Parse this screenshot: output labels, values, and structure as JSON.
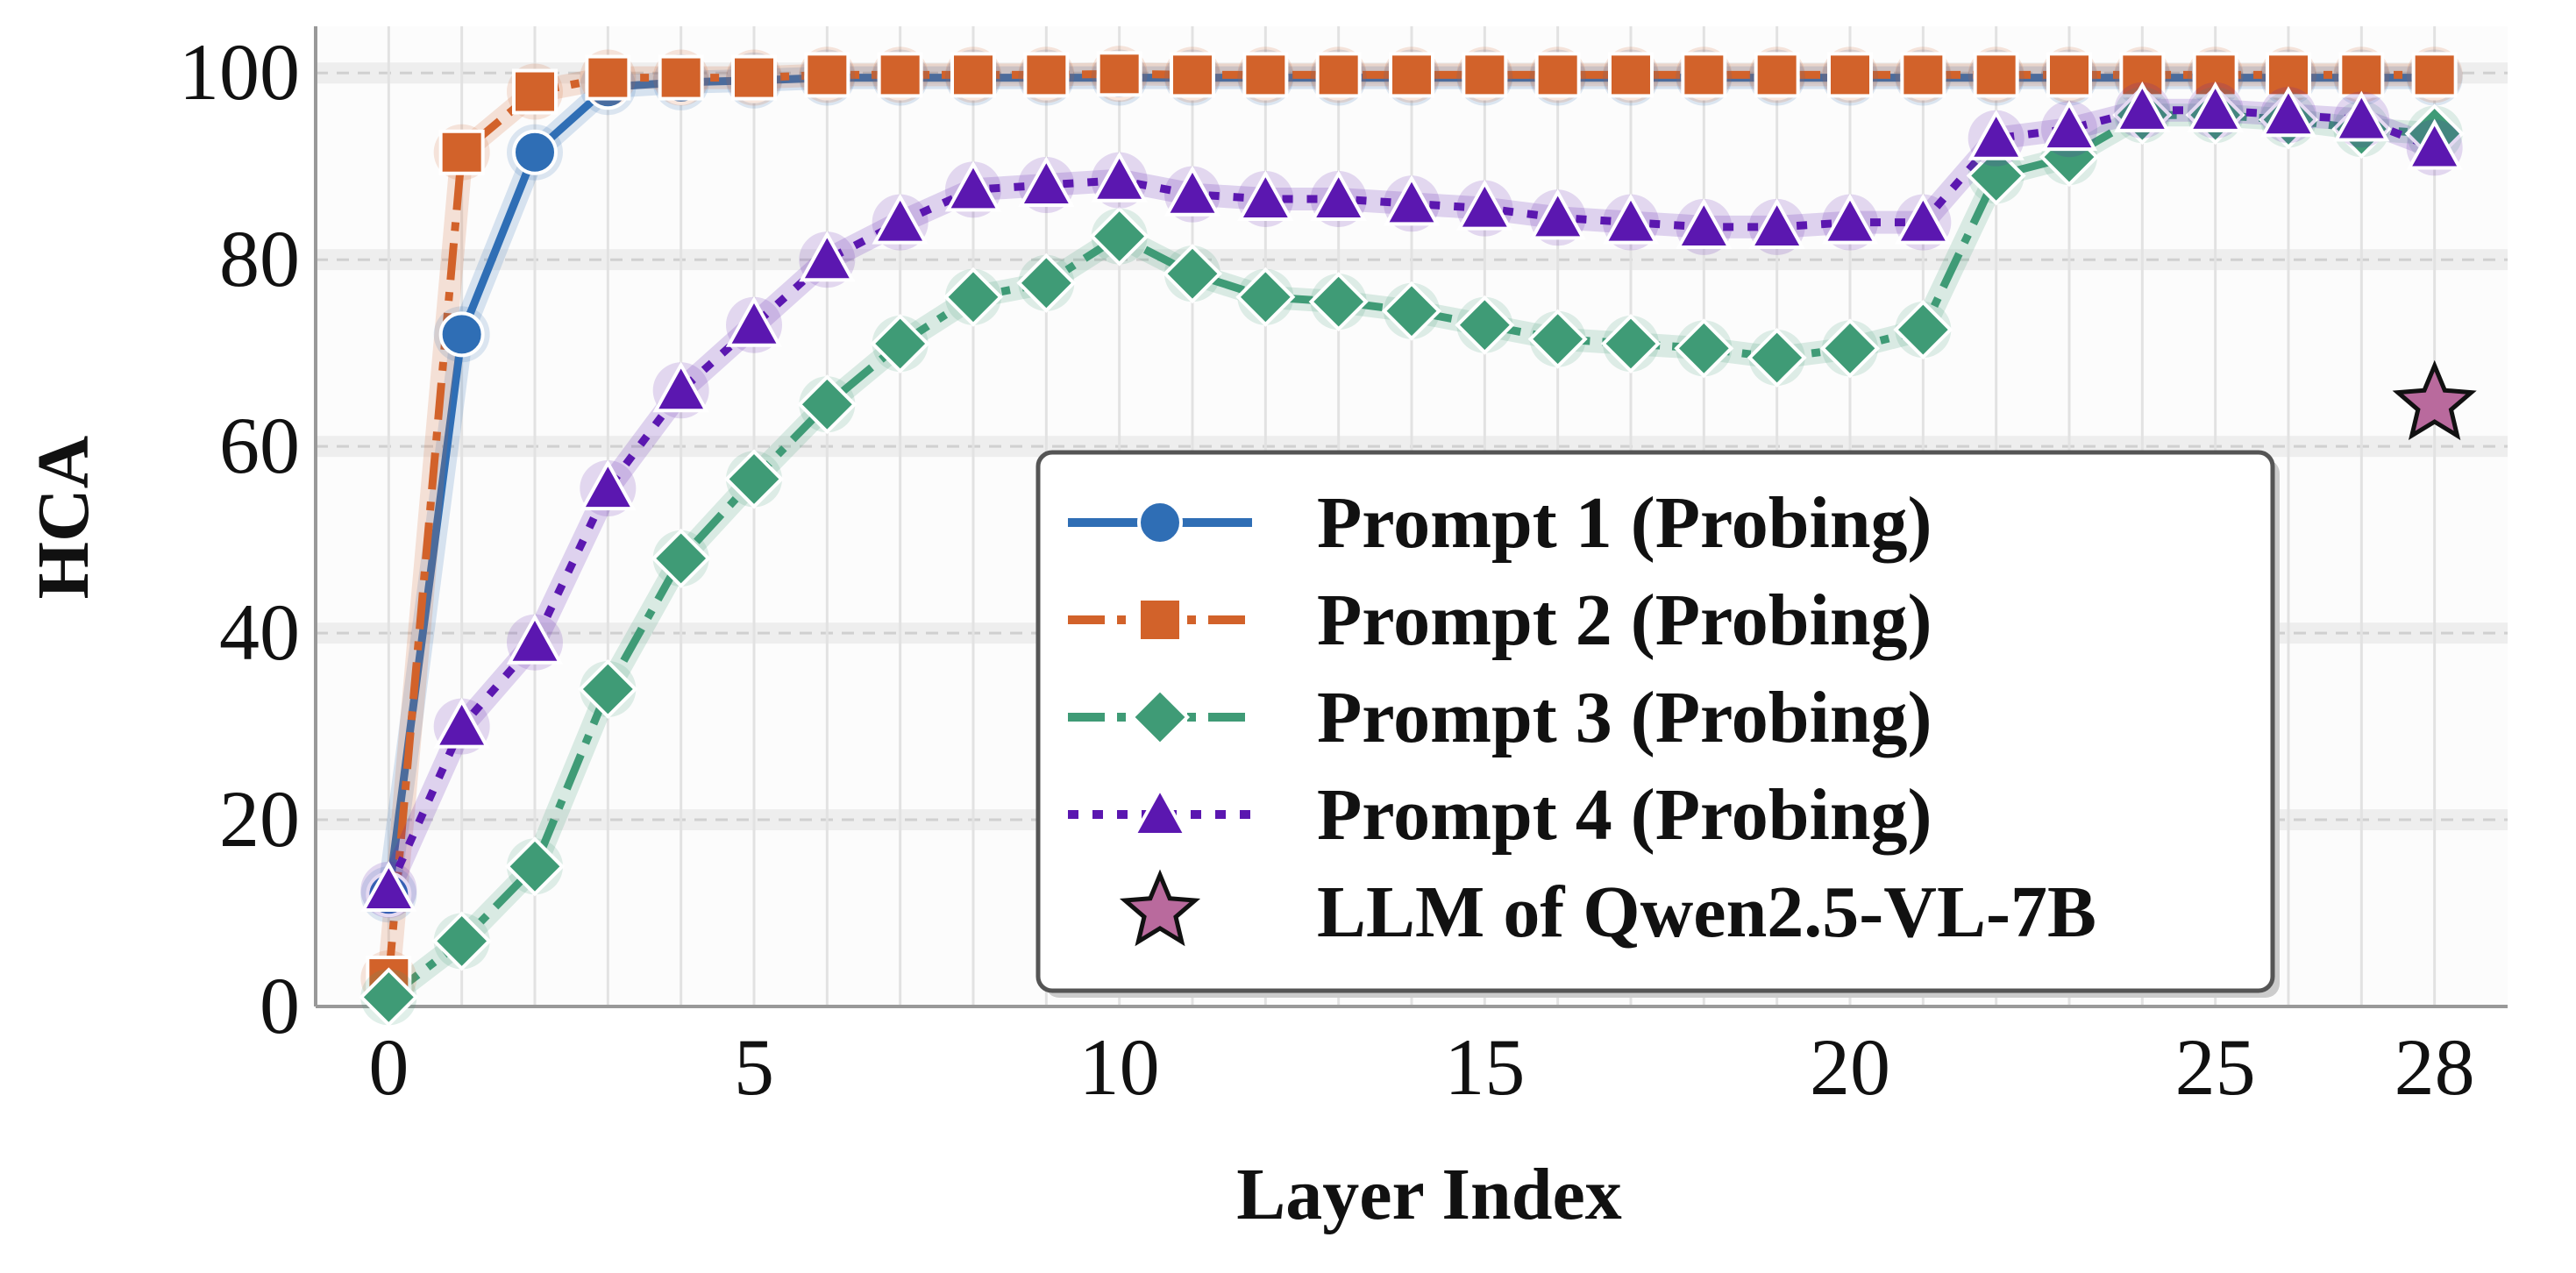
{
  "chart_data": {
    "type": "line",
    "xlabel": "Layer Index",
    "ylabel": "HCA",
    "xlim": [
      -1,
      29
    ],
    "ylim": [
      0,
      105
    ],
    "xticks": [
      0,
      5,
      10,
      15,
      20,
      25,
      28
    ],
    "yticks": [
      0,
      20,
      40,
      60,
      80,
      100
    ],
    "grid": true,
    "legend_position": "lower-right",
    "series": [
      {
        "name": "Prompt 1 (Probing)",
        "color": "#2f6eb5",
        "marker": "circle",
        "line_style": "solid",
        "x": [
          0,
          1,
          2,
          3,
          4,
          5,
          6,
          7,
          8,
          9,
          10,
          11,
          12,
          13,
          14,
          15,
          16,
          17,
          18,
          19,
          20,
          21,
          22,
          23,
          24,
          25,
          26,
          27,
          28
        ],
        "values": [
          12,
          72,
          91.5,
          98.5,
          99,
          99.2,
          99.5,
          99.5,
          99.5,
          99.5,
          99.5,
          99.5,
          99.5,
          99.5,
          99.5,
          99.5,
          99.5,
          99.5,
          99.5,
          99.5,
          99.5,
          99.5,
          99.5,
          99.5,
          99.5,
          99.5,
          99.5,
          99.5,
          99.5
        ]
      },
      {
        "name": "Prompt 2 (Probing)",
        "color": "#d2622a",
        "marker": "square",
        "line_style": "dash-dot",
        "x": [
          0,
          1,
          2,
          3,
          4,
          5,
          6,
          7,
          8,
          9,
          10,
          11,
          12,
          13,
          14,
          15,
          16,
          17,
          18,
          19,
          20,
          21,
          22,
          23,
          24,
          25,
          26,
          27,
          28
        ],
        "values": [
          3,
          91.5,
          98,
          99.5,
          99.5,
          99.5,
          99.8,
          99.8,
          99.8,
          99.8,
          99.9,
          99.8,
          99.8,
          99.8,
          99.8,
          99.8,
          99.8,
          99.8,
          99.8,
          99.8,
          99.8,
          99.8,
          99.8,
          99.8,
          99.8,
          99.8,
          99.8,
          99.8,
          99.8
        ]
      },
      {
        "name": "Prompt 3 (Probing)",
        "color": "#3f9b76",
        "marker": "diamond",
        "line_style": "dash-dot",
        "x": [
          0,
          1,
          2,
          3,
          4,
          5,
          6,
          7,
          8,
          9,
          10,
          11,
          12,
          13,
          14,
          15,
          16,
          17,
          18,
          19,
          20,
          21,
          22,
          23,
          24,
          25,
          26,
          27,
          28
        ],
        "values": [
          1,
          7,
          15,
          34,
          48,
          56.5,
          64.5,
          71,
          76,
          77.5,
          82.5,
          78.5,
          76,
          75.5,
          74.5,
          73,
          71.5,
          71,
          70.5,
          69.5,
          70.5,
          72.5,
          89,
          91,
          95.5,
          95.5,
          95,
          94,
          93.5
        ]
      },
      {
        "name": "Prompt 4 (Probing)",
        "color": "#5b17b0",
        "marker": "triangle",
        "line_style": "dotted",
        "x": [
          0,
          1,
          2,
          3,
          4,
          5,
          6,
          7,
          8,
          9,
          10,
          11,
          12,
          13,
          14,
          15,
          16,
          17,
          18,
          19,
          20,
          21,
          22,
          23,
          24,
          25,
          26,
          27,
          28
        ],
        "values": [
          12.5,
          30,
          39,
          55.5,
          66,
          73,
          80,
          84,
          87.5,
          88,
          88.5,
          87,
          86.5,
          86.5,
          86,
          85.5,
          84.5,
          84,
          83.5,
          83.5,
          84,
          84,
          93,
          94,
          96,
          96,
          95.5,
          95,
          92
        ]
      }
    ],
    "reference_points": [
      {
        "name": "LLM of Qwen2.5-VL-7B",
        "color": "#b96a9d",
        "marker": "star",
        "x": 28,
        "y": 64.5
      }
    ]
  }
}
